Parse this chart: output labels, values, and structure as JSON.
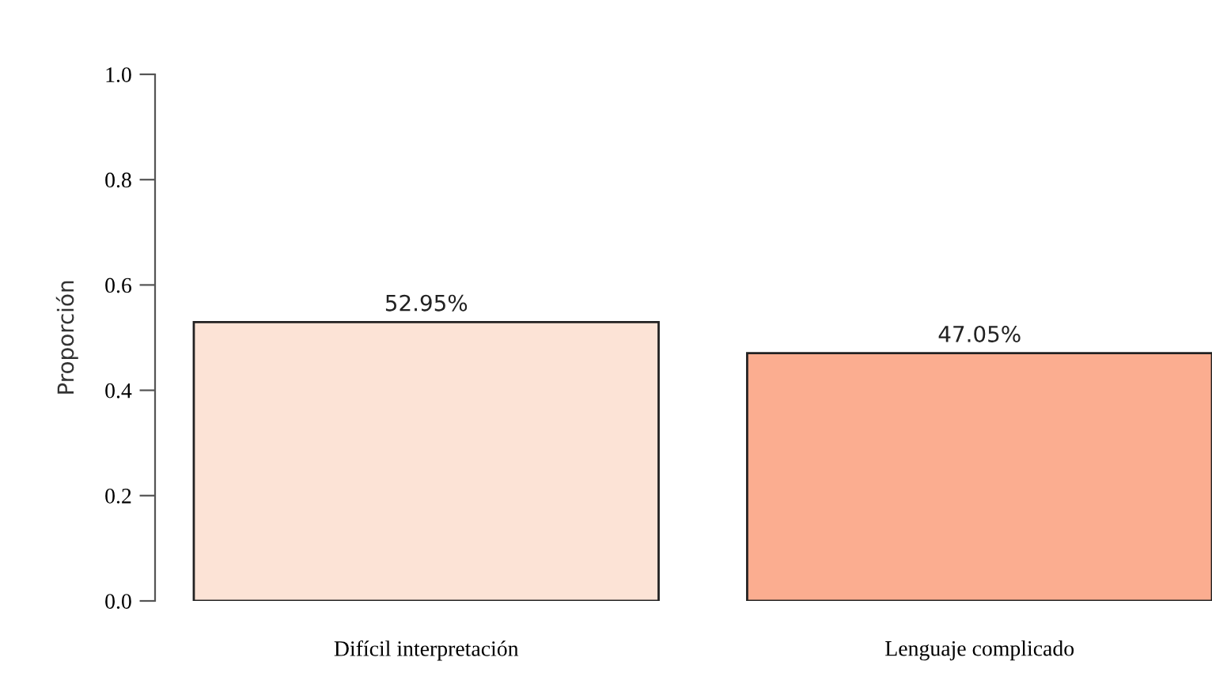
{
  "chart_data": {
    "type": "bar",
    "ylabel": "Proporción",
    "categories": [
      "Difícil interpretación",
      "Lenguaje complicado"
    ],
    "values": [
      0.5295,
      0.4705
    ],
    "value_labels": [
      "52.95%",
      "47.05%"
    ],
    "colors": [
      "#fce3d6",
      "#fbad90"
    ],
    "ylim": [
      0,
      1
    ],
    "yticks": [
      {
        "value": 0,
        "label": "0.0"
      },
      {
        "value": 0.2,
        "label": "0.2"
      },
      {
        "value": 0.4,
        "label": "0.4"
      },
      {
        "value": 0.6,
        "label": "0.6"
      },
      {
        "value": 0.8,
        "label": "0.8"
      },
      {
        "value": 1,
        "label": "1.0"
      }
    ],
    "grid": false,
    "legend": false
  }
}
